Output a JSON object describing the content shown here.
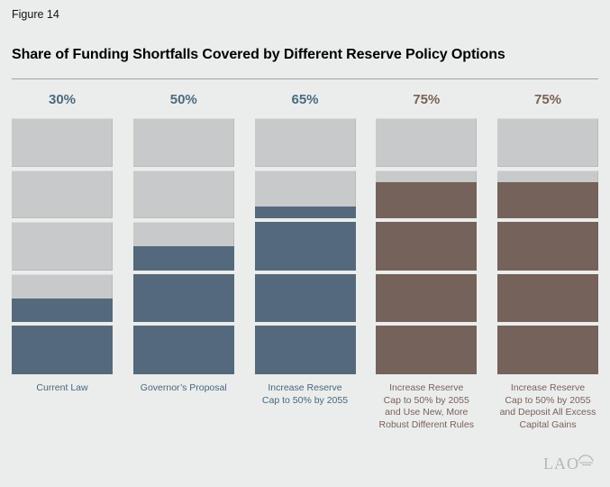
{
  "figure_label": "Figure 14",
  "title": "Share of Funding Shortfalls Covered by Different Reserve Policy Options",
  "logo_text": "LAO",
  "colors": {
    "background": "#ebedec",
    "empty_block": "#c7c9cb",
    "blue_fill": "#546a7c",
    "brown_fill": "#75625b",
    "blue_text": "#4b6a80",
    "brown_text": "#7b6157",
    "rule": "#9fa3a2",
    "logo_gray": "#b3b7b6"
  },
  "chart_data": {
    "type": "bar",
    "subtype": "stacked-block-columns",
    "title": "Share of Funding Shortfalls Covered by Different Reserve Policy Options",
    "blocks_per_column": 5,
    "percent_per_block": 20,
    "ylim": [
      0,
      100
    ],
    "grid": false,
    "legend": "none",
    "categories": [
      "Current Law",
      "Governor’s Proposal",
      "Increase Reserve Cap to 50% by 2055",
      "Increase Reserve Cap to 50% by 2055 and Use New, More Robust Different Rules",
      "Increase Reserve Cap to 50% by 2055 and Deposit All Excess Capital Gains"
    ],
    "values": [
      30,
      50,
      65,
      75,
      75
    ],
    "columns": [
      {
        "percent_label": "30%",
        "value": 30,
        "theme": "blue",
        "label_lines": [
          "Current Law"
        ],
        "block_fills_top_to_bottom": [
          0,
          0,
          0,
          0.5,
          1
        ]
      },
      {
        "percent_label": "50%",
        "value": 50,
        "theme": "blue",
        "label_lines": [
          "Governor’s Proposal"
        ],
        "block_fills_top_to_bottom": [
          0,
          0,
          0.5,
          1,
          1
        ]
      },
      {
        "percent_label": "65%",
        "value": 65,
        "theme": "blue",
        "label_lines": [
          "Increase Reserve",
          "Cap to 50% by 2055"
        ],
        "block_fills_top_to_bottom": [
          0,
          0.25,
          1,
          1,
          1
        ]
      },
      {
        "percent_label": "75%",
        "value": 75,
        "theme": "brown",
        "label_lines": [
          "Increase Reserve",
          "Cap to 50% by 2055",
          "and Use New, More",
          "Robust Different Rules"
        ],
        "block_fills_top_to_bottom": [
          0,
          0.75,
          1,
          1,
          1
        ]
      },
      {
        "percent_label": "75%",
        "value": 75,
        "theme": "brown",
        "label_lines": [
          "Increase Reserve",
          "Cap to 50% by 2055",
          "and Deposit All Excess",
          "Capital Gains"
        ],
        "block_fills_top_to_bottom": [
          0,
          0.75,
          1,
          1,
          1
        ]
      }
    ]
  }
}
